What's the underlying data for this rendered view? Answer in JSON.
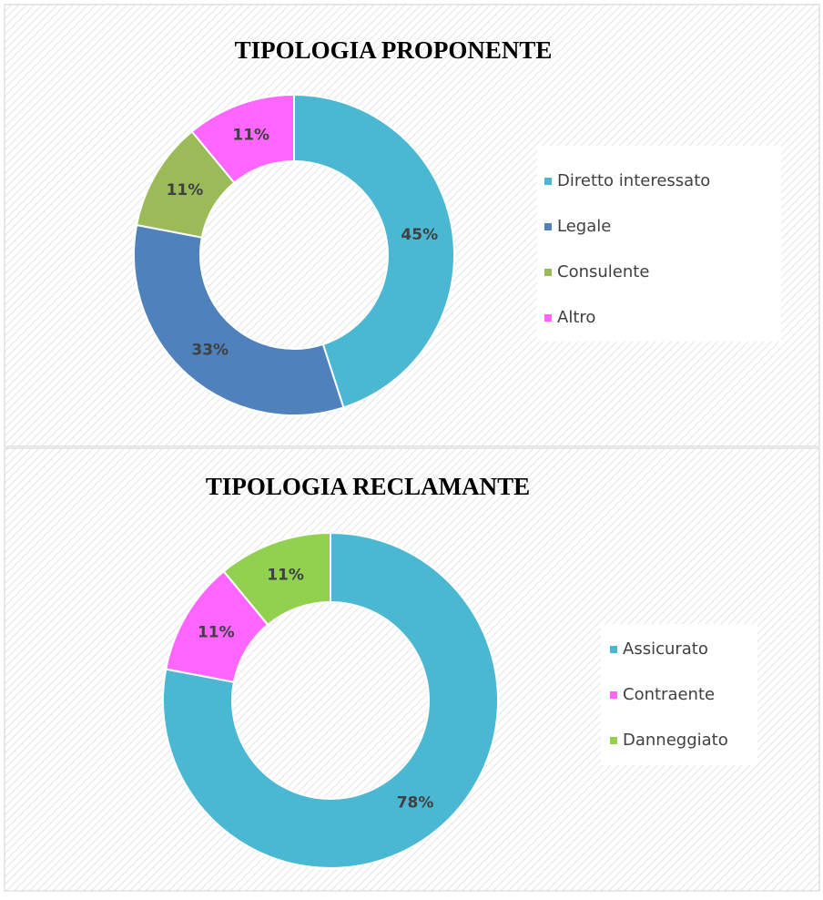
{
  "chart_data": [
    {
      "type": "donut",
      "title": "TIPOLOGIA PROPONENTE",
      "categories": [
        "Diretto interessato",
        "Legale",
        "Consulente",
        "Altro"
      ],
      "values": [
        45,
        33,
        11,
        11
      ],
      "value_labels": [
        "45%",
        "33%",
        "11%",
        "11%"
      ],
      "colors": [
        "#4bb8d3",
        "#4f81bd",
        "#9bbb59",
        "#ff66ff"
      ],
      "legend": "right"
    },
    {
      "type": "donut",
      "title": "TIPOLOGIA RECLAMANTE",
      "categories": [
        "Assicurato",
        "Contraente",
        "Danneggiato"
      ],
      "values": [
        78,
        11,
        11
      ],
      "value_labels": [
        "78%",
        "11%",
        "11%"
      ],
      "colors": [
        "#4bb8d3",
        "#ff66ff",
        "#92d050"
      ],
      "legend": "right"
    }
  ]
}
